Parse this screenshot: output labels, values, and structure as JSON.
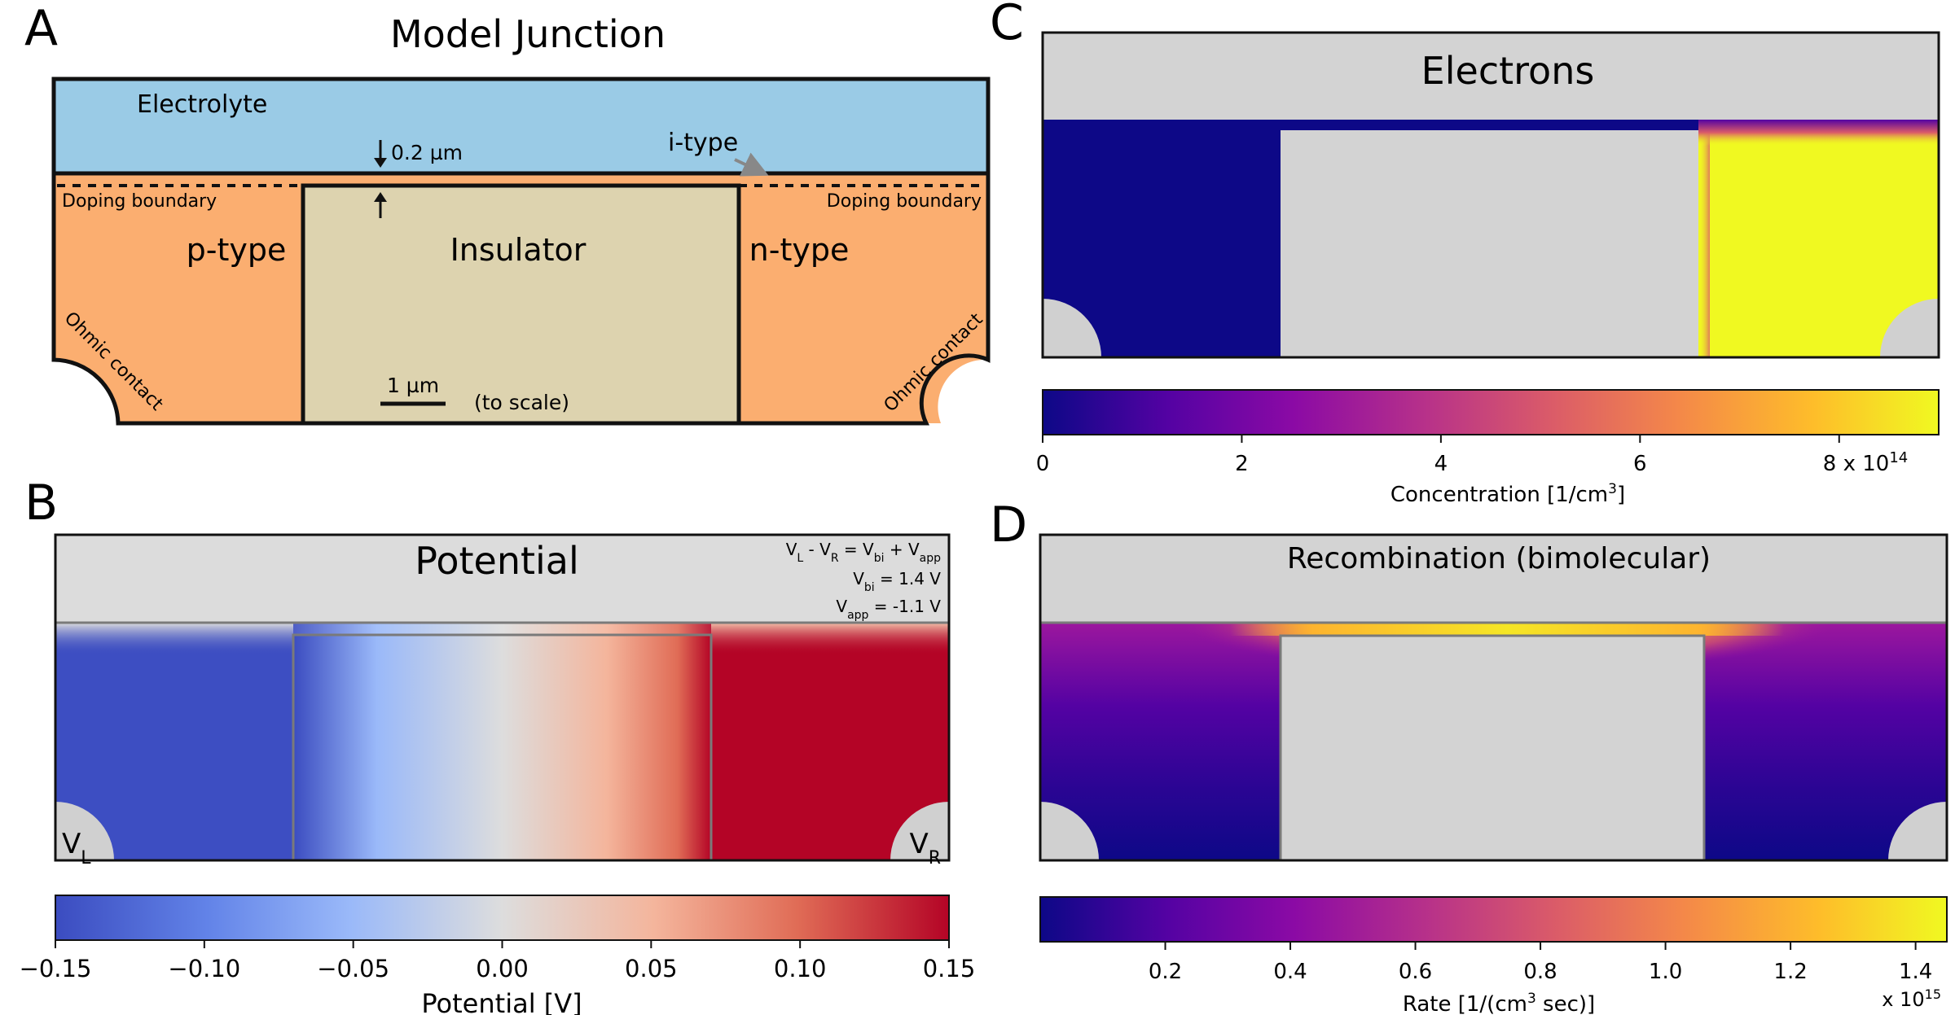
{
  "panels": {
    "a": {
      "letter": "A",
      "title": "Model Junction",
      "electrolyte": "Electrolyte",
      "thickness": "0.2 µm",
      "itype": "i-type",
      "doping_left": "Doping boundary",
      "doping_right": "Doping boundary",
      "ptype": "p-type",
      "insulator": "Insulator",
      "ntype": "n-type",
      "ohmic_left": "Ohmic contact",
      "ohmic_right": "Ohmic contact",
      "scale_bar": "1 µm",
      "to_scale": "(to scale)",
      "colors": {
        "electrolyte": "#9acbe6",
        "semiconductor": "#fbae70",
        "insulator": "#ddd3af",
        "outline": "#111111"
      }
    },
    "b": {
      "letter": "B",
      "title": "Potential",
      "eq1": "V_L - V_R = V_bi + V_app",
      "eq1_parts": [
        "V",
        "L",
        " - V",
        "R",
        " = V",
        "bi",
        " + V",
        "app"
      ],
      "eq2_parts": [
        "V",
        "bi",
        " = 1.4 V"
      ],
      "eq3_parts": [
        "V",
        "app",
        " = -1.1 V"
      ],
      "vl": [
        "V",
        "L"
      ],
      "vr": [
        "V",
        "R"
      ],
      "colorbar": {
        "ticks": [
          "−0.15",
          "−0.10",
          "−0.05",
          "0.00",
          "0.05",
          "0.10",
          "0.15"
        ],
        "label": "Potential [V]",
        "range": [
          -0.15,
          0.15
        ],
        "colormap": "coolwarm"
      }
    },
    "c": {
      "letter": "C",
      "title": "Electrons",
      "colorbar": {
        "ticks": [
          "0",
          "2",
          "4",
          "6",
          "8 x 10"
        ],
        "exponent": "14",
        "label_main": "Concentration [1/cm",
        "label_sup": "3",
        "label_end": "]",
        "range": [
          0,
          900000000000000.0
        ],
        "colormap": "plasma"
      }
    },
    "d": {
      "letter": "D",
      "title": "Recombination (bimolecular)",
      "colorbar": {
        "ticks": [
          "0.2",
          "0.4",
          "0.6",
          "0.8",
          "1.0",
          "1.2",
          "1.4"
        ],
        "exponent_base": "x 10",
        "exponent": "15",
        "label_main": "Rate [1/(cm",
        "label_sup": "3",
        "label_end": " sec)]",
        "range": [
          0.0,
          1.45
        ],
        "colormap": "plasma"
      }
    }
  }
}
